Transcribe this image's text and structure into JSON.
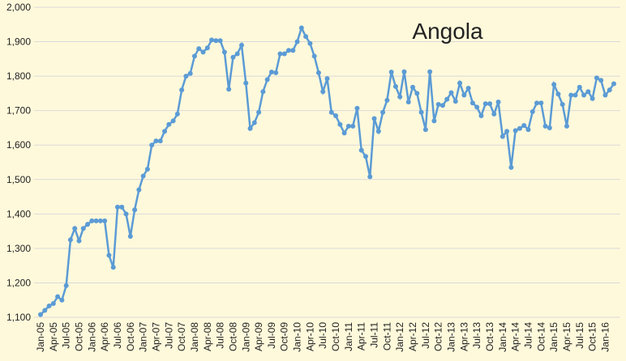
{
  "chart_data": {
    "type": "line",
    "title": "Angola",
    "categories": [
      "Jan-05",
      null,
      null,
      "Apr-05",
      null,
      null,
      "Jul-05",
      null,
      null,
      "Oct-05",
      null,
      null,
      "Jan-06",
      null,
      null,
      "Apr-06",
      null,
      null,
      "Jul-06",
      null,
      null,
      "Oct-06",
      null,
      null,
      "Jan-07",
      null,
      null,
      "Apr-07",
      null,
      null,
      "Jul-07",
      null,
      null,
      "Oct-07",
      null,
      null,
      "Jan-08",
      null,
      null,
      "Apr-08",
      null,
      null,
      "Jul-08",
      null,
      null,
      "Oct-08",
      null,
      null,
      "Jan-09",
      null,
      null,
      "Apr-09",
      null,
      null,
      "Jul-09",
      null,
      null,
      "Oct-09",
      null,
      null,
      "Jan-10",
      null,
      null,
      "Apr-10",
      null,
      null,
      "Jul-10",
      null,
      null,
      "Oct-10",
      null,
      null,
      "Jan-11",
      null,
      null,
      "Apr-11",
      null,
      null,
      "Jul-11",
      null,
      null,
      "Oct-11",
      null,
      null,
      "Jan-12",
      null,
      null,
      "Apr-12",
      null,
      null,
      "Jul-12",
      null,
      null,
      "Oct-12",
      null,
      null,
      "Jan-13",
      null,
      null,
      "Apr-13",
      null,
      null,
      "Jul-13",
      null,
      null,
      "Oct-13",
      null,
      null,
      "Jan-14",
      null,
      null,
      "Apr-14",
      null,
      null,
      "Jul-14",
      null,
      null,
      "Oct-14",
      null,
      null,
      "Jan-15",
      null,
      null,
      "Apr-15",
      null,
      null,
      "Jul-15",
      null,
      null,
      "Oct-15",
      null,
      null,
      "Jan-16",
      null,
      null
    ],
    "values": [
      1108,
      1120,
      1133,
      1140,
      1160,
      1150,
      1192,
      1325,
      1358,
      1322,
      1358,
      1370,
      1380,
      1380,
      1380,
      1380,
      1280,
      1245,
      1420,
      1420,
      1400,
      1335,
      1412,
      1470,
      1510,
      1530,
      1600,
      1612,
      1612,
      1640,
      1660,
      1670,
      1690,
      1760,
      1800,
      1808,
      1858,
      1880,
      1870,
      1882,
      1905,
      1903,
      1903,
      1870,
      1762,
      1855,
      1865,
      1890,
      1780,
      1648,
      1665,
      1695,
      1755,
      1790,
      1812,
      1810,
      1865,
      1865,
      1875,
      1875,
      1900,
      1940,
      1915,
      1895,
      1858,
      1810,
      1755,
      1793,
      1695,
      1685,
      1660,
      1635,
      1655,
      1655,
      1707,
      1585,
      1567,
      1508,
      1677,
      1640,
      1695,
      1730,
      1812,
      1770,
      1740,
      1813,
      1725,
      1768,
      1750,
      1695,
      1645,
      1813,
      1670,
      1718,
      1715,
      1733,
      1752,
      1727,
      1780,
      1745,
      1765,
      1722,
      1710,
      1685,
      1720,
      1720,
      1690,
      1725,
      1625,
      1640,
      1535,
      1642,
      1648,
      1657,
      1645,
      1697,
      1722,
      1722,
      1655,
      1650,
      1776,
      1748,
      1718,
      1655,
      1745,
      1745,
      1768,
      1745,
      1755,
      1735,
      1795,
      1788,
      1745,
      1760,
      1778
    ],
    "color": "#5b9bd5",
    "ylim": [
      1100,
      2000
    ],
    "yticks": [
      {
        "value": 1100,
        "label": "1,100"
      },
      {
        "value": 1200,
        "label": "1,200"
      },
      {
        "value": 1300,
        "label": "1,300"
      },
      {
        "value": 1400,
        "label": "1,400"
      },
      {
        "value": 1500,
        "label": "1,500"
      },
      {
        "value": 1600,
        "label": "1,600"
      },
      {
        "value": 1700,
        "label": "1,700"
      },
      {
        "value": 1800,
        "label": "1,800"
      },
      {
        "value": 1900,
        "label": "1,900"
      },
      {
        "value": 2000,
        "label": "2,000"
      }
    ],
    "grid": true
  }
}
